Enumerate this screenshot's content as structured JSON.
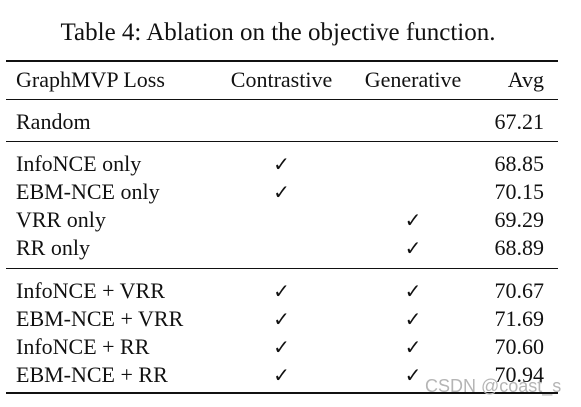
{
  "caption": "Table 4: Ablation on the objective function.",
  "header": {
    "col0": "GraphMVP  Loss",
    "col1": "Contrastive",
    "col2": "Generative",
    "col3": "Avg"
  },
  "check_glyph": "✓",
  "groups": [
    [
      {
        "loss": "Random",
        "contrastive": "",
        "generative": "",
        "avg": "67.21"
      }
    ],
    [
      {
        "loss": "InfoNCE only",
        "contrastive": "✓",
        "generative": "",
        "avg": "68.85"
      },
      {
        "loss": "EBM-NCE only",
        "contrastive": "✓",
        "generative": "",
        "avg": "70.15"
      },
      {
        "loss": "VRR only",
        "contrastive": "",
        "generative": "✓",
        "avg": "69.29"
      },
      {
        "loss": "RR only",
        "contrastive": "",
        "generative": "✓",
        "avg": "68.89"
      }
    ],
    [
      {
        "loss": "InfoNCE + VRR",
        "contrastive": "✓",
        "generative": "✓",
        "avg": "70.67"
      },
      {
        "loss": "EBM-NCE + VRR",
        "contrastive": "✓",
        "generative": "✓",
        "avg": "71.69"
      },
      {
        "loss": "InfoNCE + RR",
        "contrastive": "✓",
        "generative": "✓",
        "avg": "70.60"
      },
      {
        "loss": "EBM-NCE + RR",
        "contrastive": "✓",
        "generative": "✓",
        "avg": "70.94"
      }
    ]
  ],
  "watermark": "CSDN @coast_s"
}
